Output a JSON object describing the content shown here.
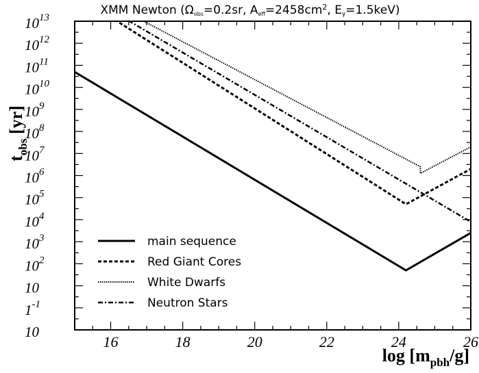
{
  "chart_data": {
    "type": "line",
    "title": "XMM Newton (Ω_obs=0.2sr, A_eff=2458cm², E_γ=1.5keV)",
    "title_parts": {
      "prefix": "XMM Newton (Ω",
      "omega_sub": "obs",
      "middle": "=0.2sr, A",
      "aeff_sub": "eff",
      "area": "=2458cm",
      "sq": "2",
      "energy_prefix": ", E",
      "gamma_sub": "γ",
      "suffix": "=1.5keV)"
    },
    "xlabel": "log [m_pbh/g]",
    "xlabel_parts": {
      "prefix": "log [m",
      "sub": "pbh",
      "suffix": "/g]"
    },
    "ylabel": "t_obs [yr]",
    "ylabel_parts": {
      "main": "t",
      "sub": "obs",
      "suffix": " [yr]"
    },
    "xlim": [
      15,
      26
    ],
    "ylim": [
      0,
      14
    ],
    "y_scale": "log",
    "x_ticks": [
      "16",
      "18",
      "20",
      "22",
      "24",
      "26"
    ],
    "y_tick_labels": [
      {
        "base": "10",
        "exp": ""
      },
      {
        "base": "1",
        "exp": "-1"
      },
      {
        "base": "10",
        "exp": ""
      },
      {
        "base": "10",
        "exp": "2"
      },
      {
        "base": "10",
        "exp": "3"
      },
      {
        "base": "10",
        "exp": "4"
      },
      {
        "base": "10",
        "exp": "5"
      },
      {
        "base": "10",
        "exp": "6"
      },
      {
        "base": "10",
        "exp": "7"
      },
      {
        "base": "10",
        "exp": "8"
      },
      {
        "base": "10",
        "exp": "9"
      },
      {
        "base": "10",
        "exp": "10"
      },
      {
        "base": "10",
        "exp": "11"
      },
      {
        "base": "10",
        "exp": "12"
      },
      {
        "base": "10",
        "exp": "13"
      }
    ],
    "legend_position": "bottom-left",
    "series": [
      {
        "name": "main sequence",
        "style": "solid",
        "x": [
          15,
          24.2,
          26
        ],
        "y": [
          11.7,
          2.7,
          4.4
        ]
      },
      {
        "name": "Red Giant Cores",
        "style": "dashed",
        "x": [
          15.6,
          24.2,
          26
        ],
        "y": [
          14.6,
          5.7,
          7.3
        ]
      },
      {
        "name": "White Dwarfs",
        "style": "dotted",
        "x": [
          16.8,
          24.6,
          24.6,
          26
        ],
        "y": [
          14.1,
          7.4,
          7.1,
          8.3
        ]
      },
      {
        "name": "Neutron Stars",
        "style": "dashdot",
        "x": [
          16.0,
          26
        ],
        "y": [
          14.5,
          4.9
        ]
      }
    ]
  }
}
